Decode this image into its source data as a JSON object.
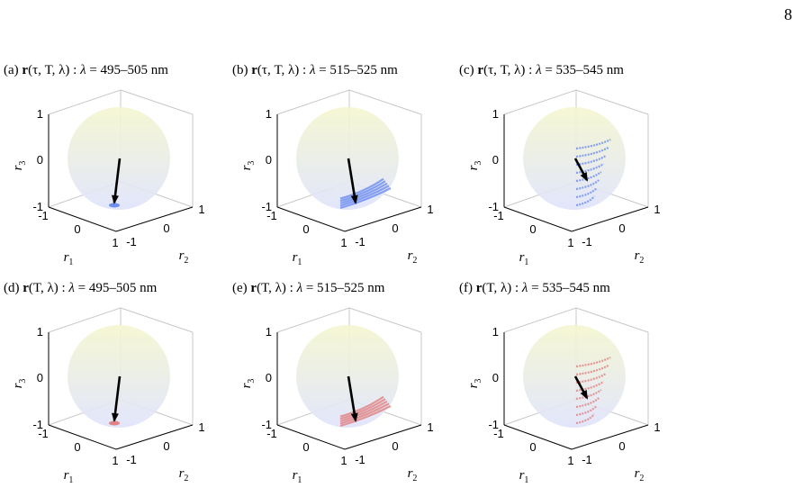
{
  "page_number": "8",
  "colors": {
    "blue_points": "#5a7ef0",
    "red_points": "#e07070",
    "arrow": "#000000",
    "box": "#c8c8c8",
    "sphere_top": "#f4f6cf",
    "sphere_bottom": "#dfe3fb"
  },
  "panels": [
    {
      "label": "(a)",
      "vector": "r",
      "args": "(τ, T, λ)",
      "lambda_label": "λ",
      "range": "495–505 nm",
      "color": "#5a7ef0",
      "spread": "narrow",
      "ticks": {
        "z": [
          "1",
          "0",
          "-1"
        ],
        "x": [
          "-1",
          "0",
          "1"
        ],
        "y": [
          "-1",
          "0",
          "1"
        ]
      },
      "axis_labels": {
        "x": "r",
        "x_sub": "1",
        "y": "r",
        "y_sub": "2",
        "z": "r",
        "z_sub": "3"
      }
    },
    {
      "label": "(b)",
      "vector": "r",
      "args": "(τ, T, λ)",
      "lambda_label": "λ",
      "range": "515–525 nm",
      "color": "#5a7ef0",
      "spread": "medium",
      "ticks": {
        "z": [
          "1",
          "0",
          "-1"
        ],
        "x": [
          "-1",
          "0",
          "1"
        ],
        "y": [
          "-1",
          "0",
          "1"
        ]
      },
      "axis_labels": {
        "x": "r",
        "x_sub": "1",
        "y": "r",
        "y_sub": "2",
        "z": "r",
        "z_sub": "3"
      }
    },
    {
      "label": "(c)",
      "vector": "r",
      "args": "(τ, T, λ)",
      "lambda_label": "λ",
      "range": "535–545 nm",
      "color": "#5a7ef0",
      "spread": "wide",
      "ticks": {
        "z": [
          "1",
          "0",
          "-1"
        ],
        "x": [
          "-1",
          "0",
          "1"
        ],
        "y": [
          "-1",
          "0",
          "1"
        ]
      },
      "axis_labels": {
        "x": "r",
        "x_sub": "1",
        "y": "r",
        "y_sub": "2",
        "z": "r",
        "z_sub": "3"
      }
    },
    {
      "label": "(d)",
      "vector": "r",
      "args": "(T, λ)",
      "lambda_label": "λ",
      "range": "495–505 nm",
      "color": "#e07070",
      "spread": "narrow",
      "ticks": {
        "z": [
          "1",
          "0",
          "-1"
        ],
        "x": [
          "-1",
          "0",
          "1"
        ],
        "y": [
          "-1",
          "0",
          "1"
        ]
      },
      "axis_labels": {
        "x": "r",
        "x_sub": "1",
        "y": "r",
        "y_sub": "2",
        "z": "r",
        "z_sub": "3"
      }
    },
    {
      "label": "(e)",
      "vector": "r",
      "args": "(T, λ)",
      "lambda_label": "λ",
      "range": "515–525 nm",
      "color": "#e07070",
      "spread": "medium",
      "ticks": {
        "z": [
          "1",
          "0",
          "-1"
        ],
        "x": [
          "-1",
          "0",
          "1"
        ],
        "y": [
          "-1",
          "0",
          "1"
        ]
      },
      "axis_labels": {
        "x": "r",
        "x_sub": "1",
        "y": "r",
        "y_sub": "2",
        "z": "r",
        "z_sub": "3"
      }
    },
    {
      "label": "(f)",
      "vector": "r",
      "args": "(T, λ)",
      "lambda_label": "λ",
      "range": "535–545 nm",
      "color": "#e07070",
      "spread": "wide",
      "ticks": {
        "z": [
          "1",
          "0",
          "-1"
        ],
        "x": [
          "-1",
          "0",
          "1"
        ],
        "y": [
          "-1",
          "0",
          "1"
        ]
      },
      "axis_labels": {
        "x": "r",
        "x_sub": "1",
        "y": "r",
        "y_sub": "2",
        "z": "r",
        "z_sub": "3"
      }
    }
  ]
}
